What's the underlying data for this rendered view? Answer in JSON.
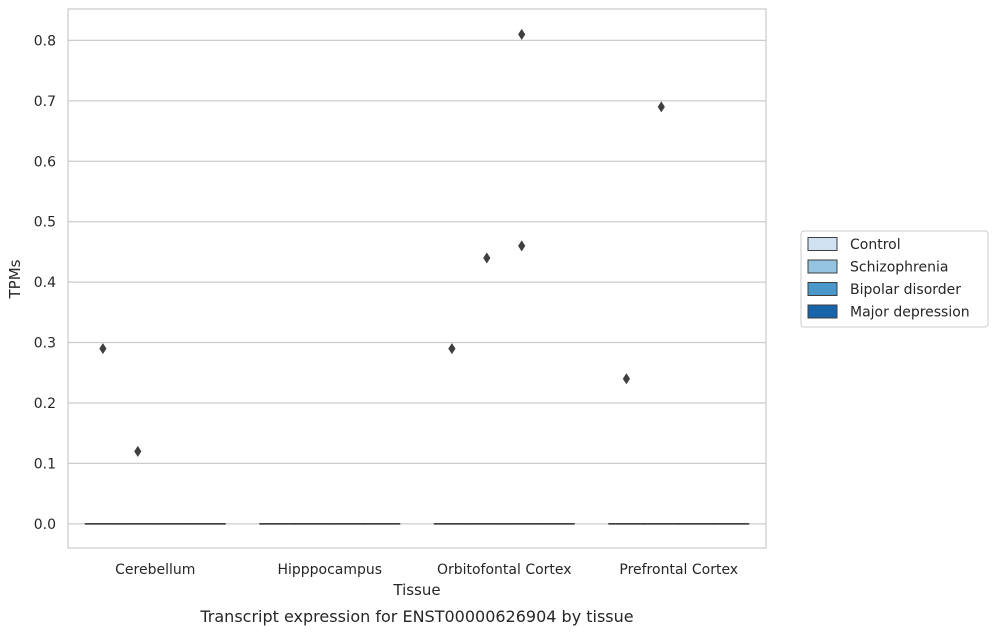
{
  "chart_data": {
    "type": "boxplot",
    "title": "",
    "caption": "Transcript expression for ENST00000626904 by tissue",
    "xlabel": "Tissue",
    "ylabel": "TPMs",
    "ylim": [
      -0.04,
      0.852
    ],
    "yticks": [
      0.0,
      0.1,
      0.2,
      0.3,
      0.4,
      0.5,
      0.6,
      0.7,
      0.8
    ],
    "ytick_labels": [
      "0.0",
      "0.1",
      "0.2",
      "0.3",
      "0.4",
      "0.5",
      "0.6",
      "0.7",
      "0.8"
    ],
    "grid": "horizontal",
    "legend_position": "right",
    "categories": [
      "Cerebellum",
      "Hipppocampus",
      "Orbitofontal Cortex",
      "Prefrontal Cortex"
    ],
    "series": [
      {
        "name": "Control",
        "color": "#d0e1f2",
        "boxes": [
          {
            "q1": 0,
            "median": 0,
            "q3": 0,
            "whisker_low": 0,
            "whisker_high": 0,
            "outliers": [
              0.29
            ]
          },
          {
            "q1": 0,
            "median": 0,
            "q3": 0,
            "whisker_low": 0,
            "whisker_high": 0,
            "outliers": []
          },
          {
            "q1": 0,
            "median": 0,
            "q3": 0,
            "whisker_low": 0,
            "whisker_high": 0,
            "outliers": [
              0.29
            ]
          },
          {
            "q1": 0,
            "median": 0,
            "q3": 0,
            "whisker_low": 0,
            "whisker_high": 0,
            "outliers": [
              0.24
            ]
          }
        ]
      },
      {
        "name": "Schizophrenia",
        "color": "#94c4df",
        "boxes": [
          {
            "q1": 0,
            "median": 0,
            "q3": 0,
            "whisker_low": 0,
            "whisker_high": 0,
            "outliers": [
              0.12
            ]
          },
          {
            "q1": 0,
            "median": 0,
            "q3": 0,
            "whisker_low": 0,
            "whisker_high": 0,
            "outliers": []
          },
          {
            "q1": 0,
            "median": 0,
            "q3": 0,
            "whisker_low": 0,
            "whisker_high": 0,
            "outliers": [
              0.44
            ]
          },
          {
            "q1": 0,
            "median": 0,
            "q3": 0,
            "whisker_low": 0,
            "whisker_high": 0,
            "outliers": [
              0.69
            ]
          }
        ]
      },
      {
        "name": "Bipolar disorder",
        "color": "#4a98c9",
        "boxes": [
          {
            "q1": 0,
            "median": 0,
            "q3": 0,
            "whisker_low": 0,
            "whisker_high": 0,
            "outliers": []
          },
          {
            "q1": 0,
            "median": 0,
            "q3": 0,
            "whisker_low": 0,
            "whisker_high": 0,
            "outliers": []
          },
          {
            "q1": 0,
            "median": 0,
            "q3": 0,
            "whisker_low": 0,
            "whisker_high": 0,
            "outliers": [
              0.46,
              0.81
            ]
          },
          {
            "q1": 0,
            "median": 0,
            "q3": 0,
            "whisker_low": 0,
            "whisker_high": 0,
            "outliers": []
          }
        ]
      },
      {
        "name": "Major depression",
        "color": "#1764ab",
        "boxes": [
          {
            "q1": 0,
            "median": 0,
            "q3": 0,
            "whisker_low": 0,
            "whisker_high": 0,
            "outliers": []
          },
          {
            "q1": 0,
            "median": 0,
            "q3": 0,
            "whisker_low": 0,
            "whisker_high": 0,
            "outliers": []
          },
          {
            "q1": 0,
            "median": 0,
            "q3": 0,
            "whisker_low": 0,
            "whisker_high": 0,
            "outliers": []
          },
          {
            "q1": 0,
            "median": 0,
            "q3": 0,
            "whisker_low": 0,
            "whisker_high": 0,
            "outliers": []
          }
        ]
      }
    ],
    "colors": {
      "grid": "#cccccc",
      "spine": "#cccccc",
      "box_edge": "#3f3f3f",
      "outlier": "#3f3f3f",
      "text": "#262626"
    }
  }
}
